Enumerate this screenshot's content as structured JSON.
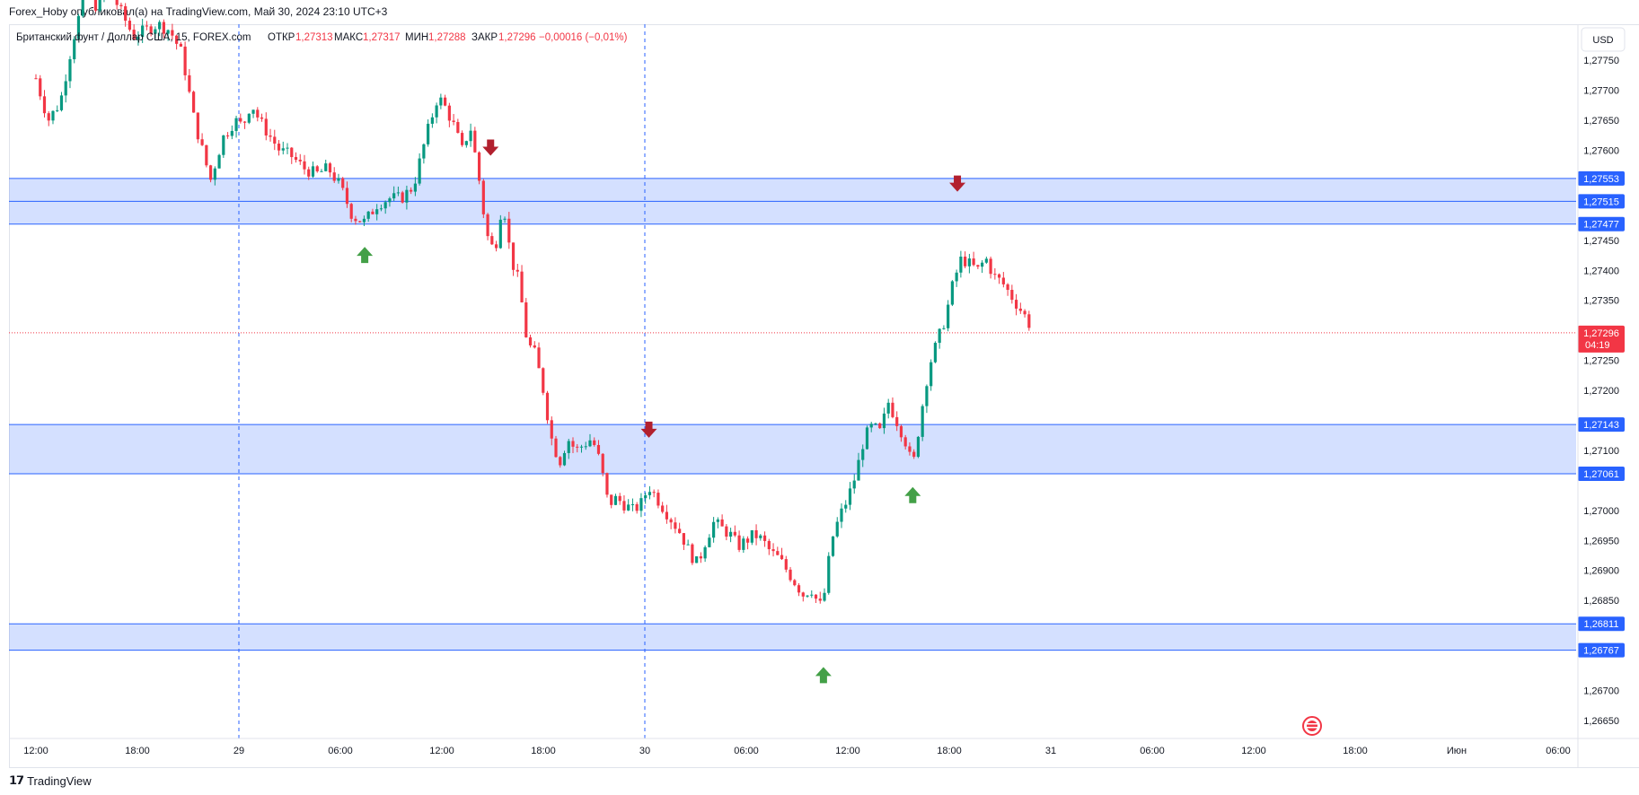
{
  "header": {
    "text": "Forex_Hoby опубликовал(а) на TradingView.com, Май 30, 2024 23:10 UTC+3"
  },
  "footer": {
    "brand": "TradingView",
    "logo_icon": "tradingview-logo-icon"
  },
  "chart_data": {
    "type": "candlestick",
    "symbol_line": {
      "name": "Британский фунт / Доллар США, 15, FOREX.com",
      "open_label": "ОТКР",
      "open_value": "1,27313",
      "high_label": "МАКС",
      "high_value": "1,27317",
      "low_label": "МИН",
      "low_value": "1,27288",
      "close_label": "ЗАКР",
      "close_value": "1,27296",
      "change": "−0,00016 (−0,01%)"
    },
    "currency": "USD",
    "ylim": [
      1.2662,
      1.2781
    ],
    "y_ticks": [
      "1,27750",
      "1,27700",
      "1,27650",
      "1,27600",
      "1,27450",
      "1,27400",
      "1,27350",
      "1,27250",
      "1,27200",
      "1,27100",
      "1,27000",
      "1,26950",
      "1,26900",
      "1,26850",
      "1,26700",
      "1,26650"
    ],
    "x_ticks": [
      {
        "label": "12:00",
        "d": 0
      },
      {
        "label": "18:00",
        "d": 0.25
      },
      {
        "label": "29",
        "d": 0.5
      },
      {
        "label": "06:00",
        "d": 0.75
      },
      {
        "label": "12:00",
        "d": 1.0
      },
      {
        "label": "18:00",
        "d": 1.25
      },
      {
        "label": "30",
        "d": 1.5
      },
      {
        "label": "06:00",
        "d": 1.75
      },
      {
        "label": "12:00",
        "d": 2.0
      },
      {
        "label": "18:00",
        "d": 2.25
      },
      {
        "label": "31",
        "d": 2.5
      },
      {
        "label": "06:00",
        "d": 2.75
      },
      {
        "label": "12:00",
        "d": 3.0
      },
      {
        "label": "18:00",
        "d": 3.25
      },
      {
        "label": "Июн",
        "d": 3.5
      },
      {
        "label": "06:00",
        "d": 3.75
      }
    ],
    "session_lines_d": [
      0.5,
      1.5
    ],
    "zones": [
      {
        "top": 1.27553,
        "bottom": 1.27477,
        "mid": 1.27515,
        "labels": [
          "1,27553",
          "1,27515",
          "1,27477"
        ]
      },
      {
        "top": 1.27143,
        "bottom": 1.27061,
        "labels": [
          "1,27143",
          "1,27061"
        ]
      },
      {
        "top": 1.26811,
        "bottom": 1.26767,
        "labels": [
          "1,26811",
          "1,26767"
        ]
      }
    ],
    "last_price": {
      "value": 1.27296,
      "label": "1,27296",
      "countdown": "04:19"
    },
    "arrows": [
      {
        "dir": "down",
        "d": 1.12,
        "price": 1.276
      },
      {
        "dir": "up",
        "d": 0.81,
        "price": 1.2743
      },
      {
        "dir": "down",
        "d": 1.51,
        "price": 1.2713
      },
      {
        "dir": "up",
        "d": 2.16,
        "price": 1.2703
      },
      {
        "dir": "down",
        "d": 2.27,
        "price": 1.2754
      },
      {
        "dir": "up",
        "d": 1.94,
        "price": 1.2673
      }
    ],
    "path": [
      [
        0.0,
        1.2772
      ],
      [
        0.03,
        1.2765
      ],
      [
        0.06,
        1.2768
      ],
      [
        0.09,
        1.2778
      ],
      [
        0.12,
        1.2786
      ],
      [
        0.15,
        1.2784
      ],
      [
        0.18,
        1.2787
      ],
      [
        0.21,
        1.2783
      ],
      [
        0.24,
        1.2779
      ],
      [
        0.27,
        1.278
      ],
      [
        0.3,
        1.2781
      ],
      [
        0.33,
        1.278
      ],
      [
        0.36,
        1.2776
      ],
      [
        0.39,
        1.2765
      ],
      [
        0.41,
        1.276
      ],
      [
        0.43,
        1.2755
      ],
      [
        0.46,
        1.2762
      ],
      [
        0.49,
        1.2765
      ],
      [
        0.51,
        1.2764
      ],
      [
        0.53,
        1.2768
      ],
      [
        0.55,
        1.2765
      ],
      [
        0.57,
        1.2763
      ],
      [
        0.6,
        1.276
      ],
      [
        0.63,
        1.2759
      ],
      [
        0.66,
        1.2757
      ],
      [
        0.69,
        1.2756
      ],
      [
        0.72,
        1.2757
      ],
      [
        0.75,
        1.2754
      ],
      [
        0.78,
        1.2749
      ],
      [
        0.81,
        1.2748
      ],
      [
        0.84,
        1.2751
      ],
      [
        0.87,
        1.2752
      ],
      [
        0.9,
        1.2752
      ],
      [
        0.93,
        1.2754
      ],
      [
        0.96,
        1.2762
      ],
      [
        0.99,
        1.2769
      ],
      [
        1.01,
        1.2767
      ],
      [
        1.03,
        1.2764
      ],
      [
        1.05,
        1.276
      ],
      [
        1.07,
        1.2764
      ],
      [
        1.09,
        1.2756
      ],
      [
        1.11,
        1.2746
      ],
      [
        1.13,
        1.2743
      ],
      [
        1.15,
        1.2752
      ],
      [
        1.17,
        1.2742
      ],
      [
        1.19,
        1.2738
      ],
      [
        1.21,
        1.2728
      ],
      [
        1.23,
        1.2726
      ],
      [
        1.25,
        1.272
      ],
      [
        1.27,
        1.2712
      ],
      [
        1.29,
        1.2708
      ],
      [
        1.31,
        1.2712
      ],
      [
        1.33,
        1.271
      ],
      [
        1.35,
        1.2711
      ],
      [
        1.37,
        1.2712
      ],
      [
        1.39,
        1.2708
      ],
      [
        1.41,
        1.2701
      ],
      [
        1.43,
        1.2702
      ],
      [
        1.45,
        1.2701
      ],
      [
        1.47,
        1.27
      ],
      [
        1.49,
        1.2701
      ],
      [
        1.51,
        1.2704
      ],
      [
        1.53,
        1.2702
      ],
      [
        1.55,
        1.27
      ],
      [
        1.57,
        1.2698
      ],
      [
        1.59,
        1.2696
      ],
      [
        1.61,
        1.2693
      ],
      [
        1.63,
        1.2691
      ],
      [
        1.65,
        1.2695
      ],
      [
        1.67,
        1.2698
      ],
      [
        1.69,
        1.2697
      ],
      [
        1.71,
        1.2696
      ],
      [
        1.73,
        1.2694
      ],
      [
        1.75,
        1.2695
      ],
      [
        1.77,
        1.2696
      ],
      [
        1.79,
        1.2695
      ],
      [
        1.81,
        1.2693
      ],
      [
        1.83,
        1.2692
      ],
      [
        1.85,
        1.269
      ],
      [
        1.87,
        1.2688
      ],
      [
        1.89,
        1.2686
      ],
      [
        1.91,
        1.2687
      ],
      [
        1.93,
        1.2684
      ],
      [
        1.94,
        1.2685
      ],
      [
        1.96,
        1.2695
      ],
      [
        1.98,
        1.2699
      ],
      [
        2.0,
        1.2702
      ],
      [
        2.02,
        1.2706
      ],
      [
        2.04,
        1.2712
      ],
      [
        2.06,
        1.2714
      ],
      [
        2.08,
        1.2713
      ],
      [
        2.1,
        1.2718
      ],
      [
        2.12,
        1.2715
      ],
      [
        2.14,
        1.2712
      ],
      [
        2.16,
        1.2707
      ],
      [
        2.18,
        1.2716
      ],
      [
        2.2,
        1.2724
      ],
      [
        2.22,
        1.2728
      ],
      [
        2.24,
        1.2732
      ],
      [
        2.26,
        1.2738
      ],
      [
        2.28,
        1.2742
      ],
      [
        2.3,
        1.2741
      ],
      [
        2.32,
        1.274
      ],
      [
        2.34,
        1.2742
      ],
      [
        2.36,
        1.2739
      ],
      [
        2.38,
        1.2738
      ],
      [
        2.4,
        1.2736
      ],
      [
        2.42,
        1.2734
      ],
      [
        2.44,
        1.2732
      ],
      [
        2.455,
        1.273
      ]
    ]
  }
}
